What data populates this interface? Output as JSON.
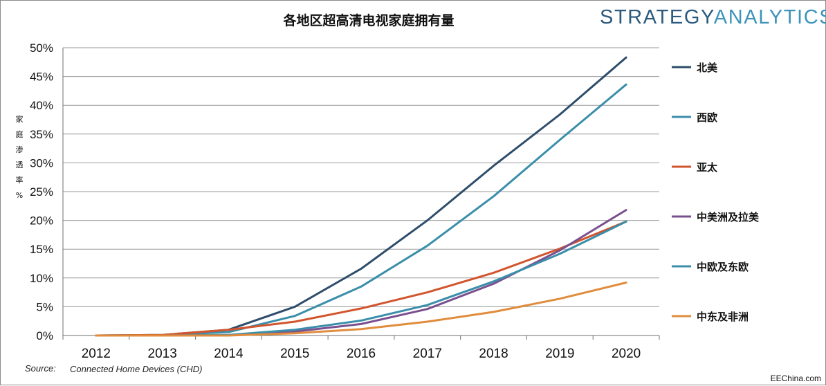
{
  "brand": {
    "part1": "STRATEGY",
    "part2": "ANALYTICS",
    "color1": "#2b5a7e",
    "color2": "#3d94b8"
  },
  "watermark": "EEChina.com",
  "source": {
    "label": "Source:",
    "text": "Connected Home Devices (CHD)"
  },
  "chart_data": {
    "type": "line",
    "title": "各地区超高清电视家庭拥有量",
    "ylabel": "家庭渗透率%",
    "xlabel": "",
    "x": [
      "2012",
      "2013",
      "2014",
      "2015",
      "2016",
      "2017",
      "2018",
      "2019",
      "2020"
    ],
    "ylim": [
      0,
      50
    ],
    "yticks": [
      0,
      5,
      10,
      15,
      20,
      25,
      30,
      35,
      40,
      45,
      50
    ],
    "ytick_labels": [
      "0%",
      "5%",
      "10%",
      "15%",
      "20%",
      "25%",
      "30%",
      "35%",
      "40%",
      "45%",
      "50%"
    ],
    "grid": true,
    "legend_position": "right",
    "series": [
      {
        "name": "北美",
        "color": "#2e4d6b",
        "values": [
          0,
          0.1,
          1.0,
          5.0,
          11.6,
          20.0,
          29.5,
          38.4,
          48.3
        ]
      },
      {
        "name": "西欧",
        "color": "#3a8eaa",
        "values": [
          0,
          0.1,
          0.6,
          3.4,
          8.5,
          15.6,
          24.2,
          34.0,
          43.6
        ]
      },
      {
        "name": "亚太",
        "color": "#d2542c",
        "values": [
          0,
          0.1,
          1.0,
          2.4,
          4.7,
          7.5,
          10.9,
          15.1,
          19.8
        ]
      },
      {
        "name": "中美洲及拉美",
        "color": "#7a4f8f",
        "values": [
          0,
          0,
          0.1,
          0.7,
          2.0,
          4.6,
          9.0,
          14.8,
          21.8
        ]
      },
      {
        "name": "中欧及东欧",
        "color": "#3a8eaa",
        "values": [
          0,
          0,
          0.1,
          1.0,
          2.6,
          5.3,
          9.4,
          14.2,
          19.8
        ]
      },
      {
        "name": "中东及非洲",
        "color": "#e08c3c",
        "values": [
          0,
          0,
          0,
          0.4,
          1.1,
          2.4,
          4.1,
          6.4,
          9.2
        ]
      }
    ]
  }
}
